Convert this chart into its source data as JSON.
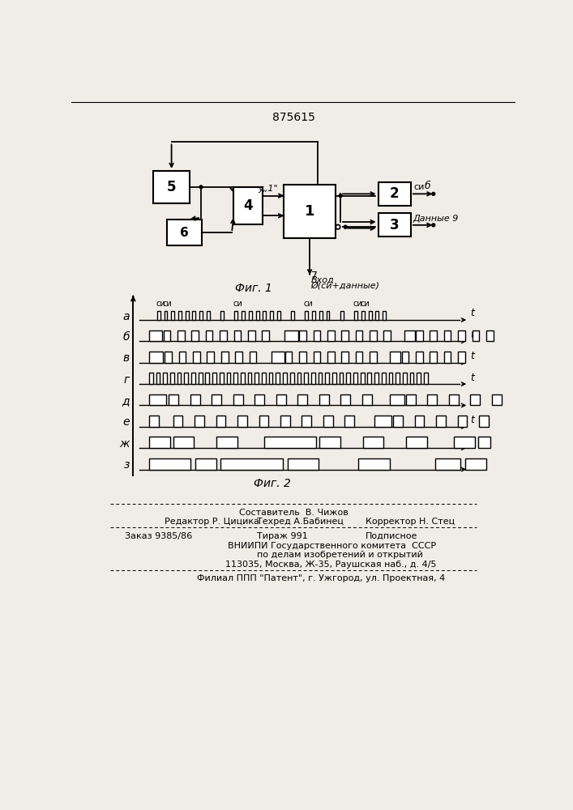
{
  "patent_number": "875615",
  "fig1_caption": "Фиг. 1",
  "fig2_caption": "Фиг. 2",
  "bg_color": "#f0ede8",
  "signal_labels": [
    "а",
    "б",
    "в",
    "г",
    "д",
    "е",
    "ж",
    "з"
  ],
  "footer_composer": "Составитель  В. Чижов",
  "footer_editor": "Редактор Р. Цицика",
  "footer_tech": "Техред А.Бабинец",
  "footer_corrector": "Корректор Н. Стец",
  "footer_order": "Заказ 9385/86",
  "footer_tirazh": "Тираж 991",
  "footer_podp": "Подписное",
  "footer_vniip1": "ВНИИПИ Государственного комитета",
  "footer_sssr": "СССР",
  "footer_vniip2": "по делам изобретений и открытий",
  "footer_addr": "113035, Москва, Ж-35, Раушская наб., д. 4/5",
  "footer_filial": "Филиал ППП \"Патент\", г. Ужгород, ул. Проектная, 4"
}
